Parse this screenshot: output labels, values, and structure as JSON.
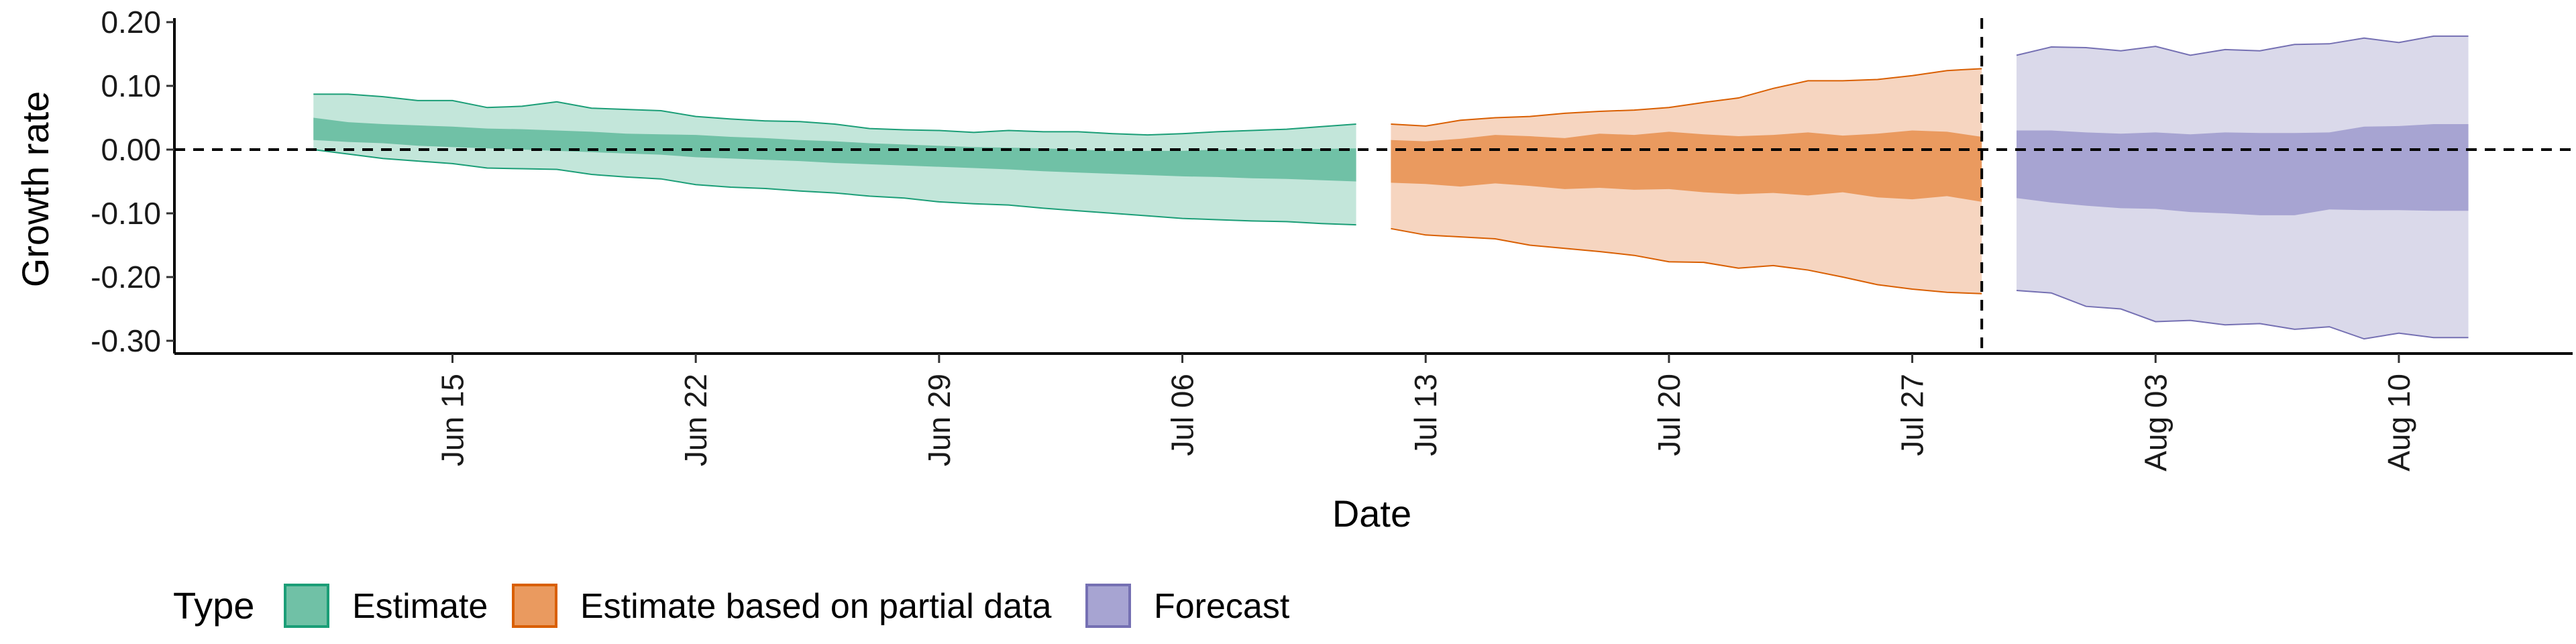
{
  "chart_data": {
    "type": "area",
    "xlabel": "Date",
    "ylabel": "Growth rate",
    "ylim": [
      -0.32,
      0.2
    ],
    "yticks": [
      0.2,
      0.1,
      0.0,
      -0.1,
      -0.2,
      -0.3
    ],
    "ytick_labels": [
      "0.20",
      "0.10",
      "0.00",
      "-0.10",
      "-0.20",
      "-0.30"
    ],
    "xlim": [
      "2020-06-07",
      "2020-08-15"
    ],
    "xticks": [
      "2020-06-15",
      "2020-06-22",
      "2020-06-29",
      "2020-07-06",
      "2020-07-13",
      "2020-07-20",
      "2020-07-27",
      "2020-08-03",
      "2020-08-10"
    ],
    "xtick_labels": [
      "Jun 15",
      "Jun 22",
      "Jun 29",
      "Jul 06",
      "Jul 13",
      "Jul 20",
      "Jul 27",
      "Aug 03",
      "Aug 10"
    ],
    "reference_lines": {
      "horizontal_y": 0.0,
      "vertical_x": "2020-07-29"
    },
    "legend": {
      "title": "Type",
      "position": "bottom-left",
      "entries": [
        "Estimate",
        "Estimate based on partial data",
        "Forecast"
      ]
    },
    "series": [
      {
        "name": "Estimate",
        "color": "#1b9e77",
        "fill_outer": "#c3e6da",
        "fill_inner": "#70c1a6",
        "x": [
          "2020-06-11",
          "2020-06-12",
          "2020-06-13",
          "2020-06-14",
          "2020-06-15",
          "2020-06-16",
          "2020-06-17",
          "2020-06-18",
          "2020-06-19",
          "2020-06-20",
          "2020-06-21",
          "2020-06-22",
          "2020-06-23",
          "2020-06-24",
          "2020-06-25",
          "2020-06-26",
          "2020-06-27",
          "2020-06-28",
          "2020-06-29",
          "2020-06-30",
          "2020-07-01",
          "2020-07-02",
          "2020-07-03",
          "2020-07-04",
          "2020-07-05",
          "2020-07-06",
          "2020-07-07",
          "2020-07-08",
          "2020-07-09",
          "2020-07-10",
          "2020-07-11"
        ],
        "outer_upper": [
          0.087,
          0.087,
          0.083,
          0.077,
          0.077,
          0.066,
          0.068,
          0.075,
          0.065,
          0.063,
          0.061,
          0.052,
          0.048,
          0.045,
          0.044,
          0.04,
          0.033,
          0.031,
          0.03,
          0.027,
          0.03,
          0.028,
          0.028,
          0.025,
          0.023,
          0.025,
          0.028,
          0.03,
          0.032,
          0.036,
          0.04
        ],
        "outer_lower": [
          0.0,
          -0.007,
          -0.014,
          -0.018,
          -0.022,
          -0.029,
          -0.03,
          -0.031,
          -0.039,
          -0.043,
          -0.046,
          -0.055,
          -0.059,
          -0.061,
          -0.065,
          -0.068,
          -0.073,
          -0.076,
          -0.082,
          -0.085,
          -0.087,
          -0.092,
          -0.096,
          -0.1,
          -0.104,
          -0.108,
          -0.11,
          -0.112,
          -0.113,
          -0.116,
          -0.118
        ],
        "inner_upper": [
          0.05,
          0.043,
          0.04,
          0.038,
          0.036,
          0.033,
          0.032,
          0.03,
          0.028,
          0.025,
          0.024,
          0.023,
          0.02,
          0.018,
          0.015,
          0.013,
          0.01,
          0.008,
          0.006,
          0.004,
          0.003,
          0.002,
          0.0,
          -0.002,
          -0.002,
          -0.002,
          0.0,
          0.0,
          0.001,
          0.001,
          0.002
        ],
        "inner_lower": [
          0.015,
          0.012,
          0.01,
          0.006,
          0.004,
          0.002,
          0.0,
          -0.002,
          -0.004,
          -0.006,
          -0.008,
          -0.012,
          -0.014,
          -0.016,
          -0.018,
          -0.021,
          -0.023,
          -0.025,
          -0.027,
          -0.029,
          -0.031,
          -0.034,
          -0.036,
          -0.038,
          -0.04,
          -0.042,
          -0.043,
          -0.045,
          -0.046,
          -0.048,
          -0.05
        ]
      },
      {
        "name": "Estimate based on partial data",
        "color": "#d95f02",
        "fill_outer": "#f6d5c0",
        "fill_inner": "#ea9a5f",
        "x": [
          "2020-07-12",
          "2020-07-13",
          "2020-07-14",
          "2020-07-15",
          "2020-07-16",
          "2020-07-17",
          "2020-07-18",
          "2020-07-19",
          "2020-07-20",
          "2020-07-21",
          "2020-07-22",
          "2020-07-23",
          "2020-07-24",
          "2020-07-25",
          "2020-07-26",
          "2020-07-27",
          "2020-07-28",
          "2020-07-29"
        ],
        "outer_upper": [
          0.04,
          0.037,
          0.046,
          0.05,
          0.052,
          0.057,
          0.06,
          0.062,
          0.066,
          0.074,
          0.081,
          0.096,
          0.108,
          0.108,
          0.11,
          0.116,
          0.124,
          0.127
        ],
        "outer_lower": [
          -0.124,
          -0.134,
          -0.137,
          -0.14,
          -0.15,
          -0.155,
          -0.16,
          -0.166,
          -0.176,
          -0.177,
          -0.186,
          -0.182,
          -0.189,
          -0.2,
          -0.212,
          -0.219,
          -0.224,
          -0.226
        ],
        "inner_upper": [
          0.015,
          0.013,
          0.017,
          0.023,
          0.021,
          0.018,
          0.025,
          0.023,
          0.028,
          0.024,
          0.021,
          0.023,
          0.027,
          0.022,
          0.025,
          0.03,
          0.028,
          0.02
        ],
        "inner_lower": [
          -0.052,
          -0.054,
          -0.058,
          -0.053,
          -0.057,
          -0.062,
          -0.06,
          -0.063,
          -0.062,
          -0.067,
          -0.07,
          -0.068,
          -0.072,
          -0.067,
          -0.075,
          -0.078,
          -0.073,
          -0.082
        ]
      },
      {
        "name": "Forecast",
        "color": "#7570b3",
        "fill_outer": "#dad9ea",
        "fill_inner": "#a7a4d2",
        "x": [
          "2020-07-30",
          "2020-07-31",
          "2020-08-01",
          "2020-08-02",
          "2020-08-03",
          "2020-08-04",
          "2020-08-05",
          "2020-08-06",
          "2020-08-07",
          "2020-08-08",
          "2020-08-09",
          "2020-08-10",
          "2020-08-11",
          "2020-08-12"
        ],
        "outer_upper": [
          0.148,
          0.161,
          0.16,
          0.155,
          0.162,
          0.148,
          0.157,
          0.155,
          0.165,
          0.166,
          0.175,
          0.168,
          0.178,
          0.178
        ],
        "outer_lower": [
          -0.221,
          -0.225,
          -0.246,
          -0.25,
          -0.27,
          -0.268,
          -0.275,
          -0.273,
          -0.282,
          -0.278,
          -0.297,
          -0.288,
          -0.295,
          -0.295
        ],
        "inner_upper": [
          0.03,
          0.03,
          0.027,
          0.025,
          0.027,
          0.024,
          0.027,
          0.026,
          0.026,
          0.027,
          0.036,
          0.037,
          0.04,
          0.04
        ],
        "inner_lower": [
          -0.076,
          -0.083,
          -0.088,
          -0.092,
          -0.093,
          -0.098,
          -0.1,
          -0.103,
          -0.103,
          -0.094,
          -0.095,
          -0.095,
          -0.096,
          -0.096
        ]
      }
    ]
  }
}
